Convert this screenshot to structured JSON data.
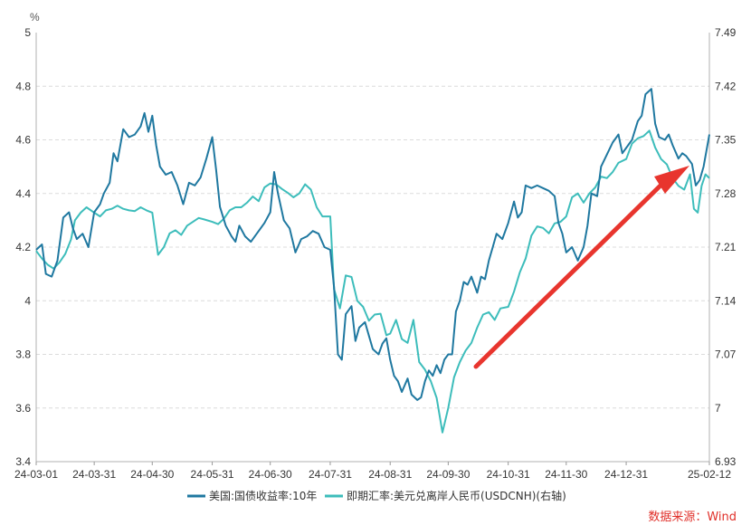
{
  "chart_data": {
    "type": "line",
    "left_axis": {
      "unit": "%",
      "range": [
        3.4,
        5.0
      ],
      "ticks": [
        "5",
        "4.8",
        "4.6",
        "4.4",
        "4.2",
        "4",
        "3.8",
        "3.6",
        "3.4"
      ],
      "tick_values": [
        5.0,
        4.8,
        4.6,
        4.4,
        4.2,
        4.0,
        3.8,
        3.6,
        3.4
      ]
    },
    "right_axis": {
      "range": [
        6.93,
        7.49
      ],
      "ticks": [
        "7.49",
        "7.42",
        "7.35",
        "7.28",
        "7.21",
        "7.14",
        "7.07",
        "7",
        "6.93"
      ],
      "tick_values": [
        7.49,
        7.42,
        7.35,
        7.28,
        7.21,
        7.14,
        7.07,
        7.0,
        6.93
      ]
    },
    "x_axis": {
      "ticks": [
        "24-03-01",
        "24-03-31",
        "24-04-30",
        "24-05-31",
        "24-06-30",
        "24-07-31",
        "24-08-31",
        "24-09-30",
        "24-10-31",
        "24-11-30",
        "24-12-31",
        "25-02-12"
      ]
    },
    "grid": true,
    "series": [
      {
        "name": "美国:国债收益率:10年",
        "axis": "left",
        "color": "#1f78a0",
        "points": [
          [
            "24-03-01",
            4.19
          ],
          [
            "24-03-04",
            4.21
          ],
          [
            "24-03-06",
            4.1
          ],
          [
            "24-03-09",
            4.09
          ],
          [
            "24-03-12",
            4.15
          ],
          [
            "24-03-15",
            4.31
          ],
          [
            "24-03-18",
            4.33
          ],
          [
            "24-03-20",
            4.27
          ],
          [
            "24-03-22",
            4.23
          ],
          [
            "24-03-25",
            4.25
          ],
          [
            "24-03-28",
            4.2
          ],
          [
            "24-03-31",
            4.33
          ],
          [
            "24-04-03",
            4.36
          ],
          [
            "24-04-05",
            4.4
          ],
          [
            "24-04-08",
            4.44
          ],
          [
            "24-04-10",
            4.55
          ],
          [
            "24-04-12",
            4.52
          ],
          [
            "24-04-15",
            4.64
          ],
          [
            "24-04-18",
            4.61
          ],
          [
            "24-04-21",
            4.62
          ],
          [
            "24-04-24",
            4.65
          ],
          [
            "24-04-26",
            4.7
          ],
          [
            "24-04-28",
            4.63
          ],
          [
            "24-04-30",
            4.69
          ],
          [
            "24-05-02",
            4.58
          ],
          [
            "24-05-04",
            4.5
          ],
          [
            "24-05-07",
            4.47
          ],
          [
            "24-05-10",
            4.48
          ],
          [
            "24-05-13",
            4.43
          ],
          [
            "24-05-16",
            4.36
          ],
          [
            "24-05-19",
            4.44
          ],
          [
            "24-05-22",
            4.43
          ],
          [
            "24-05-25",
            4.46
          ],
          [
            "24-05-28",
            4.53
          ],
          [
            "24-05-31",
            4.61
          ],
          [
            "24-06-02",
            4.49
          ],
          [
            "24-06-04",
            4.35
          ],
          [
            "24-06-07",
            4.28
          ],
          [
            "24-06-10",
            4.24
          ],
          [
            "24-06-12",
            4.22
          ],
          [
            "24-06-14",
            4.28
          ],
          [
            "24-06-17",
            4.24
          ],
          [
            "24-06-20",
            4.22
          ],
          [
            "24-06-24",
            4.26
          ],
          [
            "24-06-27",
            4.29
          ],
          [
            "24-06-30",
            4.33
          ],
          [
            "24-07-02",
            4.48
          ],
          [
            "24-07-04",
            4.4
          ],
          [
            "24-07-07",
            4.3
          ],
          [
            "24-07-10",
            4.27
          ],
          [
            "24-07-13",
            4.18
          ],
          [
            "24-07-16",
            4.23
          ],
          [
            "24-07-19",
            4.24
          ],
          [
            "24-07-22",
            4.26
          ],
          [
            "24-07-25",
            4.25
          ],
          [
            "24-07-28",
            4.2
          ],
          [
            "24-07-31",
            4.19
          ],
          [
            "24-08-02",
            4.05
          ],
          [
            "24-08-04",
            3.8
          ],
          [
            "24-08-06",
            3.78
          ],
          [
            "24-08-08",
            3.95
          ],
          [
            "24-08-11",
            3.98
          ],
          [
            "24-08-13",
            3.85
          ],
          [
            "24-08-15",
            3.9
          ],
          [
            "24-08-18",
            3.92
          ],
          [
            "24-08-20",
            3.87
          ],
          [
            "24-08-22",
            3.82
          ],
          [
            "24-08-25",
            3.8
          ],
          [
            "24-08-27",
            3.84
          ],
          [
            "24-08-29",
            3.86
          ],
          [
            "24-08-31",
            3.78
          ],
          [
            "24-09-02",
            3.72
          ],
          [
            "24-09-04",
            3.7
          ],
          [
            "24-09-06",
            3.66
          ],
          [
            "24-09-09",
            3.71
          ],
          [
            "24-09-11",
            3.65
          ],
          [
            "24-09-14",
            3.63
          ],
          [
            "24-09-16",
            3.64
          ],
          [
            "24-09-18",
            3.7
          ],
          [
            "24-09-20",
            3.74
          ],
          [
            "24-09-22",
            3.72
          ],
          [
            "24-09-24",
            3.76
          ],
          [
            "24-09-26",
            3.73
          ],
          [
            "24-09-28",
            3.78
          ],
          [
            "24-09-30",
            3.8
          ],
          [
            "24-10-02",
            3.8
          ],
          [
            "24-10-04",
            3.96
          ],
          [
            "24-10-06",
            4.0
          ],
          [
            "24-10-08",
            4.07
          ],
          [
            "24-10-10",
            4.06
          ],
          [
            "24-10-12",
            4.09
          ],
          [
            "24-10-15",
            4.03
          ],
          [
            "24-10-17",
            4.09
          ],
          [
            "24-10-19",
            4.08
          ],
          [
            "24-10-21",
            4.15
          ],
          [
            "24-10-23",
            4.2
          ],
          [
            "24-10-25",
            4.25
          ],
          [
            "24-10-28",
            4.23
          ],
          [
            "24-10-31",
            4.29
          ],
          [
            "24-11-03",
            4.37
          ],
          [
            "24-11-05",
            4.31
          ],
          [
            "24-11-07",
            4.33
          ],
          [
            "24-11-09",
            4.43
          ],
          [
            "24-11-12",
            4.42
          ],
          [
            "24-11-15",
            4.43
          ],
          [
            "24-11-18",
            4.42
          ],
          [
            "24-11-21",
            4.41
          ],
          [
            "24-11-24",
            4.39
          ],
          [
            "24-11-26",
            4.29
          ],
          [
            "24-11-28",
            4.25
          ],
          [
            "24-11-30",
            4.18
          ],
          [
            "24-12-03",
            4.2
          ],
          [
            "24-12-06",
            4.15
          ],
          [
            "24-12-09",
            4.2
          ],
          [
            "24-12-11",
            4.28
          ],
          [
            "24-12-13",
            4.4
          ],
          [
            "24-12-16",
            4.39
          ],
          [
            "24-12-18",
            4.5
          ],
          [
            "24-12-20",
            4.53
          ],
          [
            "24-12-22",
            4.56
          ],
          [
            "24-12-24",
            4.59
          ],
          [
            "24-12-27",
            4.62
          ],
          [
            "24-12-29",
            4.55
          ],
          [
            "24-12-31",
            4.57
          ],
          [
            "25-01-03",
            4.6
          ],
          [
            "25-01-06",
            4.67
          ],
          [
            "25-01-08",
            4.69
          ],
          [
            "25-01-10",
            4.77
          ],
          [
            "25-01-13",
            4.79
          ],
          [
            "25-01-15",
            4.66
          ],
          [
            "25-01-17",
            4.61
          ],
          [
            "25-01-20",
            4.6
          ],
          [
            "25-01-22",
            4.62
          ],
          [
            "25-01-24",
            4.58
          ],
          [
            "25-01-27",
            4.53
          ],
          [
            "25-01-29",
            4.55
          ],
          [
            "25-01-31",
            4.54
          ],
          [
            "25-02-03",
            4.51
          ],
          [
            "25-02-05",
            4.43
          ],
          [
            "25-02-07",
            4.45
          ],
          [
            "25-02-09",
            4.5
          ],
          [
            "25-02-12",
            4.62
          ]
        ]
      },
      {
        "name": "即期汇率:美元兑离岸人民币(USDCNH)(右轴)",
        "axis": "right",
        "color": "#3dbdbb",
        "points": [
          [
            "24-03-01",
            7.205
          ],
          [
            "24-03-04",
            7.195
          ],
          [
            "24-03-07",
            7.187
          ],
          [
            "24-03-10",
            7.182
          ],
          [
            "24-03-13",
            7.19
          ],
          [
            "24-03-16",
            7.201
          ],
          [
            "24-03-19",
            7.22
          ],
          [
            "24-03-21",
            7.245
          ],
          [
            "24-03-24",
            7.255
          ],
          [
            "24-03-27",
            7.262
          ],
          [
            "24-03-31",
            7.255
          ],
          [
            "24-04-03",
            7.25
          ],
          [
            "24-04-06",
            7.258
          ],
          [
            "24-04-09",
            7.26
          ],
          [
            "24-04-12",
            7.264
          ],
          [
            "24-04-15",
            7.26
          ],
          [
            "24-04-18",
            7.258
          ],
          [
            "24-04-21",
            7.257
          ],
          [
            "24-04-24",
            7.262
          ],
          [
            "24-04-27",
            7.258
          ],
          [
            "24-04-30",
            7.255
          ],
          [
            "24-05-03",
            7.2
          ],
          [
            "24-05-06",
            7.21
          ],
          [
            "24-05-09",
            7.228
          ],
          [
            "24-05-12",
            7.232
          ],
          [
            "24-05-15",
            7.226
          ],
          [
            "24-05-18",
            7.238
          ],
          [
            "24-05-21",
            7.243
          ],
          [
            "24-05-24",
            7.248
          ],
          [
            "24-05-27",
            7.246
          ],
          [
            "24-05-31",
            7.243
          ],
          [
            "24-06-03",
            7.24
          ],
          [
            "24-06-06",
            7.247
          ],
          [
            "24-06-09",
            7.258
          ],
          [
            "24-06-12",
            7.262
          ],
          [
            "24-06-15",
            7.262
          ],
          [
            "24-06-18",
            7.268
          ],
          [
            "24-06-21",
            7.276
          ],
          [
            "24-06-24",
            7.27
          ],
          [
            "24-06-27",
            7.288
          ],
          [
            "24-06-30",
            7.293
          ],
          [
            "24-07-03",
            7.292
          ],
          [
            "24-07-06",
            7.286
          ],
          [
            "24-07-09",
            7.281
          ],
          [
            "24-07-12",
            7.275
          ],
          [
            "24-07-15",
            7.28
          ],
          [
            "24-07-18",
            7.292
          ],
          [
            "24-07-21",
            7.285
          ],
          [
            "24-07-24",
            7.262
          ],
          [
            "24-07-27",
            7.25
          ],
          [
            "24-07-31",
            7.25
          ],
          [
            "24-08-02",
            7.155
          ],
          [
            "24-08-05",
            7.13
          ],
          [
            "24-08-08",
            7.173
          ],
          [
            "24-08-11",
            7.171
          ],
          [
            "24-08-14",
            7.14
          ],
          [
            "24-08-17",
            7.132
          ],
          [
            "24-08-20",
            7.114
          ],
          [
            "24-08-23",
            7.122
          ],
          [
            "24-08-26",
            7.123
          ],
          [
            "24-08-29",
            7.095
          ],
          [
            "24-08-31",
            7.097
          ],
          [
            "24-09-03",
            7.115
          ],
          [
            "24-09-06",
            7.09
          ],
          [
            "24-09-09",
            7.085
          ],
          [
            "24-09-12",
            7.115
          ],
          [
            "24-09-15",
            7.06
          ],
          [
            "24-09-18",
            7.05
          ],
          [
            "24-09-21",
            7.035
          ],
          [
            "24-09-24",
            7.013
          ],
          [
            "24-09-27",
            6.968
          ],
          [
            "24-09-30",
            7.0
          ],
          [
            "24-10-03",
            7.04
          ],
          [
            "24-10-06",
            7.06
          ],
          [
            "24-10-09",
            7.075
          ],
          [
            "24-10-12",
            7.085
          ],
          [
            "24-10-15",
            7.105
          ],
          [
            "24-10-18",
            7.122
          ],
          [
            "24-10-21",
            7.125
          ],
          [
            "24-10-24",
            7.115
          ],
          [
            "24-10-27",
            7.13
          ],
          [
            "24-10-31",
            7.132
          ],
          [
            "24-11-03",
            7.152
          ],
          [
            "24-11-06",
            7.177
          ],
          [
            "24-11-09",
            7.195
          ],
          [
            "24-11-12",
            7.225
          ],
          [
            "24-11-15",
            7.237
          ],
          [
            "24-11-18",
            7.235
          ],
          [
            "24-11-21",
            7.228
          ],
          [
            "24-11-24",
            7.241
          ],
          [
            "24-11-27",
            7.243
          ],
          [
            "24-11-30",
            7.25
          ],
          [
            "24-12-03",
            7.275
          ],
          [
            "24-12-06",
            7.28
          ],
          [
            "24-12-09",
            7.268
          ],
          [
            "24-12-12",
            7.28
          ],
          [
            "24-12-15",
            7.288
          ],
          [
            "24-12-18",
            7.302
          ],
          [
            "24-12-21",
            7.3
          ],
          [
            "24-12-24",
            7.308
          ],
          [
            "24-12-27",
            7.32
          ],
          [
            "24-12-31",
            7.325
          ],
          [
            "25-01-03",
            7.345
          ],
          [
            "25-01-06",
            7.352
          ],
          [
            "25-01-09",
            7.355
          ],
          [
            "25-01-12",
            7.362
          ],
          [
            "25-01-15",
            7.34
          ],
          [
            "25-01-18",
            7.325
          ],
          [
            "25-01-21",
            7.318
          ],
          [
            "25-01-24",
            7.3
          ],
          [
            "25-01-27",
            7.29
          ],
          [
            "25-01-30",
            7.285
          ],
          [
            "25-02-02",
            7.305
          ],
          [
            "25-02-04",
            7.26
          ],
          [
            "25-02-06",
            7.255
          ],
          [
            "25-02-08",
            7.29
          ],
          [
            "25-02-10",
            7.305
          ],
          [
            "25-02-12",
            7.3
          ]
        ]
      }
    ],
    "annotation": {
      "type": "arrow",
      "color": "#e8352e"
    }
  },
  "legend": {
    "items": [
      {
        "label": "美国:国债收益率:10年",
        "color": "#1f78a0"
      },
      {
        "label": "即期汇率:美元兑离岸人民币(USDCNH)(右轴)",
        "color": "#3dbdbb"
      }
    ]
  },
  "source": "数据来源：Wind"
}
